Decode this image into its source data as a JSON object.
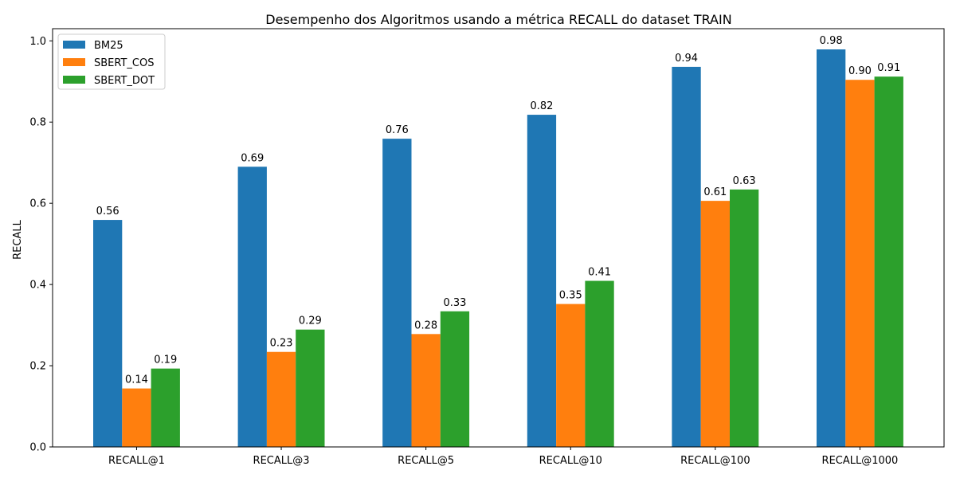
{
  "chart_data": {
    "type": "bar",
    "title": "Desempenho dos Algoritmos usando a métrica RECALL do dataset TRAIN",
    "xlabel": "",
    "ylabel": "RECALL",
    "ylim": [
      0,
      1.03
    ],
    "yticks": [
      "0.0",
      "0.2",
      "0.4",
      "0.6",
      "0.8",
      "1.0"
    ],
    "categories": [
      "RECALL@1",
      "RECALL@3",
      "RECALL@5",
      "RECALL@10",
      "RECALL@100",
      "RECALL@1000"
    ],
    "series": [
      {
        "name": "BM25",
        "color": "#1f77b4",
        "values": [
          0.559,
          0.69,
          0.759,
          0.818,
          0.936,
          0.979
        ],
        "labels": [
          "0.56",
          "0.69",
          "0.76",
          "0.82",
          "0.94",
          "0.98"
        ]
      },
      {
        "name": "SBERT_COS",
        "color": "#ff7f0e",
        "values": [
          0.144,
          0.234,
          0.278,
          0.352,
          0.606,
          0.904
        ],
        "labels": [
          "0.14",
          "0.23",
          "0.28",
          "0.35",
          "0.61",
          "0.90"
        ]
      },
      {
        "name": "SBERT_DOT",
        "color": "#2ca02c",
        "values": [
          0.193,
          0.289,
          0.334,
          0.409,
          0.634,
          0.912
        ],
        "labels": [
          "0.19",
          "0.29",
          "0.33",
          "0.41",
          "0.63",
          "0.91"
        ]
      }
    ],
    "legend_position": "top-left",
    "grid": false
  }
}
